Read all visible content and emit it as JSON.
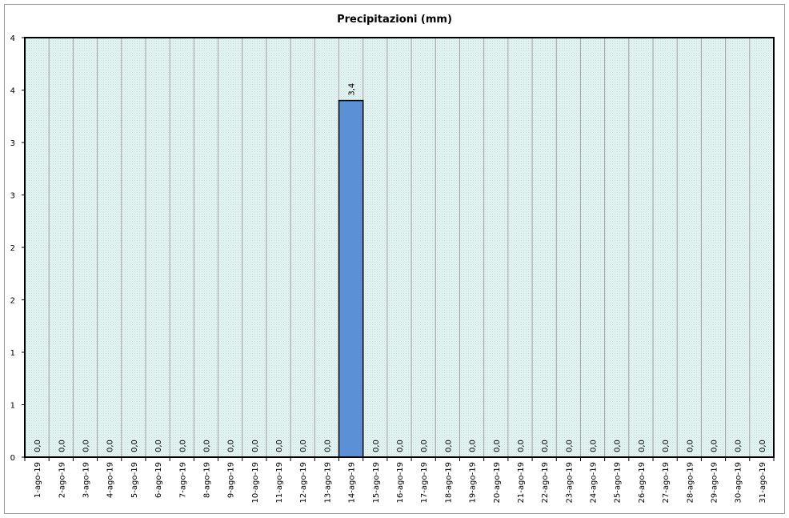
{
  "chart_data": {
    "type": "bar",
    "title": "Precipitazioni (mm)",
    "xlabel": "",
    "ylabel": "",
    "ylim": [
      0,
      4
    ],
    "y_tick_labels": [
      "0",
      "1",
      "1",
      "2",
      "2",
      "3",
      "3",
      "4",
      "4"
    ],
    "grid": true,
    "legend": "none",
    "categories": [
      "1-ago-19",
      "2-ago-19",
      "3-ago-19",
      "4-ago-19",
      "5-ago-19",
      "6-ago-19",
      "7-ago-19",
      "8-ago-19",
      "9-ago-19",
      "10-ago-19",
      "11-ago-19",
      "12-ago-19",
      "13-ago-19",
      "14-ago-19",
      "15-ago-19",
      "16-ago-19",
      "17-ago-19",
      "18-ago-19",
      "19-ago-19",
      "20-ago-19",
      "21-ago-19",
      "22-ago-19",
      "23-ago-19",
      "24-ago-19",
      "25-ago-19",
      "26-ago-19",
      "27-ago-19",
      "28-ago-19",
      "29-ago-19",
      "30-ago-19",
      "31-ago-19"
    ],
    "values": [
      0,
      0,
      0,
      0,
      0,
      0,
      0,
      0,
      0,
      0,
      0,
      0,
      0,
      3.4,
      0,
      0,
      0,
      0,
      0,
      0,
      0,
      0,
      0,
      0,
      0,
      0,
      0,
      0,
      0,
      0,
      0
    ],
    "data_labels": [
      "0,0",
      "0,0",
      "0,0",
      "0,0",
      "0,0",
      "0,0",
      "0,0",
      "0,0",
      "0,0",
      "0,0",
      "0,0",
      "0,0",
      "0,0",
      "3,4",
      "0,0",
      "0,0",
      "0,0",
      "0,0",
      "0,0",
      "0,0",
      "0,0",
      "0,0",
      "0,0",
      "0,0",
      "0,0",
      "0,0",
      "0,0",
      "0,0",
      "0,0",
      "0,0",
      "0,0"
    ],
    "colors": {
      "bar": "#5b8fd6",
      "bar_stroke": "#000000",
      "plot_bg": "#dff0ef",
      "grid": "#a0a0a0"
    }
  }
}
